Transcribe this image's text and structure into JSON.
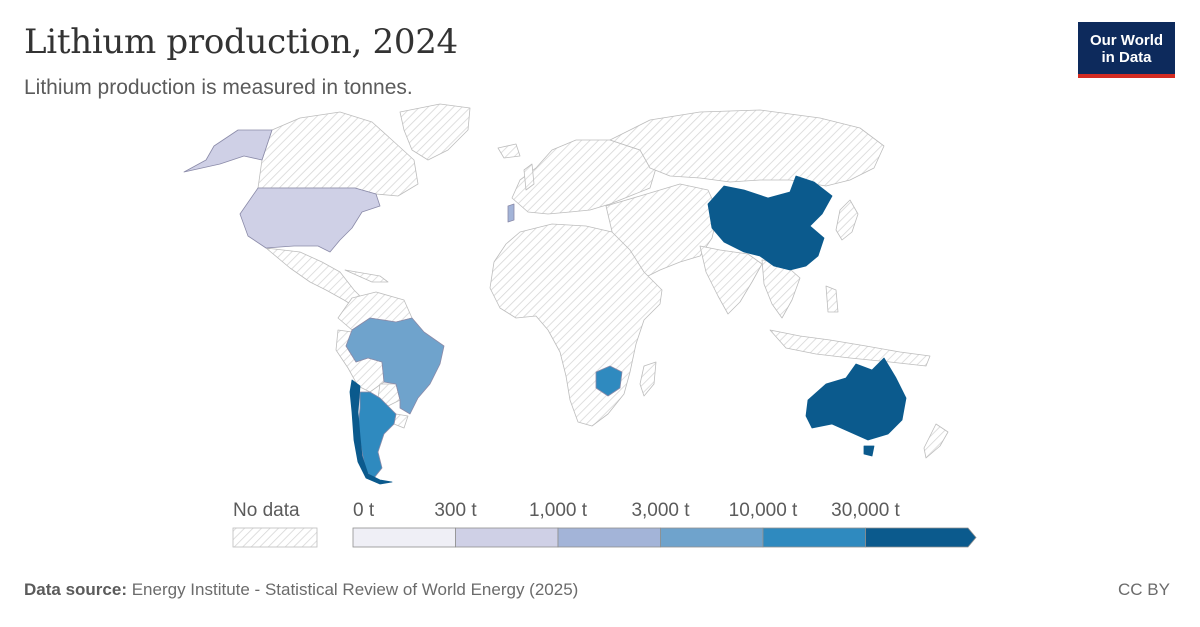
{
  "header": {
    "title": "Lithium production, 2024",
    "subtitle": "Lithium production is measured in tonnes."
  },
  "logo": {
    "line1": "Our World",
    "line2": "in Data"
  },
  "legend": {
    "no_data_label": "No data",
    "bins": [
      {
        "label": "0 t",
        "color": "#efeff6"
      },
      {
        "label": "300 t",
        "color": "#cfd0e6"
      },
      {
        "label": "1,000 t",
        "color": "#a3b4d8"
      },
      {
        "label": "3,000 t",
        "color": "#6fa3cc"
      },
      {
        "label": "10,000 t",
        "color": "#2f8abf"
      },
      {
        "label": "30,000 t",
        "color": "#0b5a8d"
      }
    ]
  },
  "map_data": {
    "no_data_pattern_color": "#d7d7d7",
    "highlighted_countries": [
      {
        "name": "United States",
        "color": "#cfd0e6"
      },
      {
        "name": "Brazil",
        "color": "#6fa3cc"
      },
      {
        "name": "Argentina",
        "color": "#2f8abf"
      },
      {
        "name": "Chile",
        "color": "#0b5a8d"
      },
      {
        "name": "Zimbabwe",
        "color": "#2f8abf"
      },
      {
        "name": "China",
        "color": "#0b5a8d"
      },
      {
        "name": "Australia",
        "color": "#0b5a8d"
      },
      {
        "name": "Portugal",
        "color": "#a3b4d8"
      }
    ]
  },
  "footer": {
    "source_label": "Data source:",
    "source_text": "Energy Institute - Statistical Review of World Energy (2025)",
    "license": "CC BY"
  }
}
